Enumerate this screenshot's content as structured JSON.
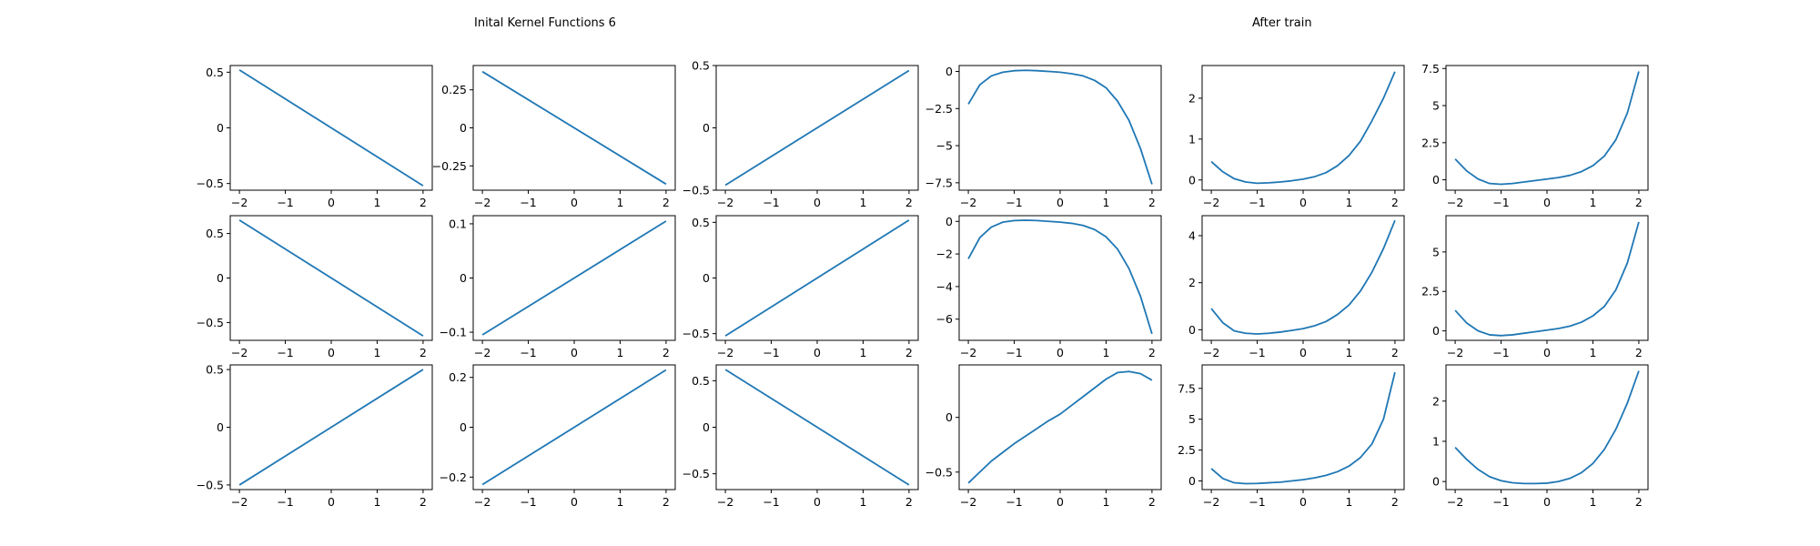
{
  "figure": {
    "titles": [
      "Inital Kernel Functions 6",
      "After train"
    ],
    "line_color": "#1f77b4"
  },
  "chart_data": [
    {
      "type": "line",
      "panel": "r1c1",
      "x": [
        -2,
        2
      ],
      "y": [
        0.52,
        -0.52
      ],
      "ylim": [
        -0.56,
        0.56
      ],
      "xticks": [
        -2,
        -1,
        0,
        1,
        2
      ],
      "yticks": [
        0.5,
        0.0,
        -0.5
      ]
    },
    {
      "type": "line",
      "panel": "r1c2",
      "x": [
        -2,
        2
      ],
      "y": [
        0.37,
        -0.37
      ],
      "ylim": [
        -0.41,
        0.41
      ],
      "xticks": [
        -2,
        -1,
        0,
        1,
        2
      ],
      "yticks": [
        0.25,
        0.0,
        -0.25
      ]
    },
    {
      "type": "line",
      "panel": "r1c3",
      "x": [
        -2,
        2
      ],
      "y": [
        -0.46,
        0.46
      ],
      "ylim": [
        -0.5,
        0.5
      ],
      "xticks": [
        -2,
        -1,
        0,
        1,
        2
      ],
      "yticks": [
        0.5,
        0.0,
        -0.5
      ]
    },
    {
      "type": "line",
      "panel": "r1c4",
      "x": [
        -2,
        -1.75,
        -1.5,
        -1.25,
        -1,
        -0.75,
        -0.5,
        -0.25,
        0,
        0.25,
        0.5,
        0.75,
        1,
        1.25,
        1.5,
        1.75,
        2
      ],
      "y": [
        -2.2,
        -0.9,
        -0.3,
        -0.05,
        0.05,
        0.08,
        0.05,
        0.0,
        -0.05,
        -0.15,
        -0.3,
        -0.6,
        -1.1,
        -2.0,
        -3.3,
        -5.2,
        -7.6
      ],
      "ylim": [
        -8.0,
        0.4
      ],
      "xticks": [
        -2,
        -1,
        0,
        1,
        2
      ],
      "yticks": [
        0.0,
        -2.5,
        -5.0,
        -7.5
      ]
    },
    {
      "type": "line",
      "panel": "r1c5",
      "x": [
        -2,
        -1.75,
        -1.5,
        -1.25,
        -1,
        -0.75,
        -0.5,
        -0.25,
        0,
        0.25,
        0.5,
        0.75,
        1,
        1.25,
        1.5,
        1.75,
        2
      ],
      "y": [
        0.45,
        0.2,
        0.03,
        -0.05,
        -0.08,
        -0.07,
        -0.05,
        -0.02,
        0.02,
        0.08,
        0.18,
        0.35,
        0.6,
        0.95,
        1.45,
        2.0,
        2.65
      ],
      "ylim": [
        -0.25,
        2.8
      ],
      "xticks": [
        -2,
        -1,
        0,
        1,
        2
      ],
      "yticks": [
        0,
        1,
        2
      ]
    },
    {
      "type": "line",
      "panel": "r1c6",
      "x": [
        -2,
        -1.75,
        -1.5,
        -1.25,
        -1,
        -0.75,
        -0.5,
        -0.25,
        0,
        0.25,
        0.5,
        0.75,
        1,
        1.25,
        1.5,
        1.75,
        2
      ],
      "y": [
        1.4,
        0.6,
        0.05,
        -0.25,
        -0.3,
        -0.25,
        -0.15,
        -0.05,
        0.05,
        0.15,
        0.3,
        0.55,
        0.95,
        1.6,
        2.7,
        4.5,
        7.3
      ],
      "ylim": [
        -0.7,
        7.7
      ],
      "xticks": [
        -2,
        -1,
        0,
        1,
        2
      ],
      "yticks": [
        0.0,
        2.5,
        5.0,
        7.5
      ]
    },
    {
      "type": "line",
      "panel": "r2c1",
      "x": [
        -2,
        2
      ],
      "y": [
        0.65,
        -0.65
      ],
      "ylim": [
        -0.7,
        0.7
      ],
      "xticks": [
        -2,
        -1,
        0,
        1,
        2
      ],
      "yticks": [
        0.5,
        0.0,
        -0.5
      ]
    },
    {
      "type": "line",
      "panel": "r2c2",
      "x": [
        -2,
        2
      ],
      "y": [
        -0.105,
        0.105
      ],
      "ylim": [
        -0.115,
        0.115
      ],
      "xticks": [
        -2,
        -1,
        0,
        1,
        2
      ],
      "yticks": [
        0.1,
        0.0,
        -0.1
      ]
    },
    {
      "type": "line",
      "panel": "r2c3",
      "x": [
        -2,
        2
      ],
      "y": [
        -0.52,
        0.52
      ],
      "ylim": [
        -0.56,
        0.56
      ],
      "xticks": [
        -2,
        -1,
        0,
        1,
        2
      ],
      "yticks": [
        0.5,
        0.0,
        -0.5
      ]
    },
    {
      "type": "line",
      "panel": "r2c4",
      "x": [
        -2,
        -1.75,
        -1.5,
        -1.25,
        -1,
        -0.75,
        -0.5,
        -0.25,
        0,
        0.25,
        0.5,
        0.75,
        1,
        1.25,
        1.5,
        1.75,
        2
      ],
      "y": [
        -2.3,
        -1.0,
        -0.35,
        -0.05,
        0.05,
        0.07,
        0.05,
        0.0,
        -0.05,
        -0.12,
        -0.25,
        -0.5,
        -0.95,
        -1.7,
        -2.9,
        -4.6,
        -6.9
      ],
      "ylim": [
        -7.3,
        0.35
      ],
      "xticks": [
        -2,
        -1,
        0,
        1,
        2
      ],
      "yticks": [
        0,
        -2,
        -4,
        -6
      ]
    },
    {
      "type": "line",
      "panel": "r2c5",
      "x": [
        -2,
        -1.75,
        -1.5,
        -1.25,
        -1,
        -0.75,
        -0.5,
        -0.25,
        0,
        0.25,
        0.5,
        0.75,
        1,
        1.25,
        1.5,
        1.75,
        2
      ],
      "y": [
        0.9,
        0.3,
        -0.05,
        -0.15,
        -0.18,
        -0.15,
        -0.1,
        -0.03,
        0.05,
        0.17,
        0.35,
        0.65,
        1.05,
        1.65,
        2.45,
        3.45,
        4.65
      ],
      "ylim": [
        -0.45,
        4.85
      ],
      "xticks": [
        -2,
        -1,
        0,
        1,
        2
      ],
      "yticks": [
        0,
        2,
        4
      ]
    },
    {
      "type": "line",
      "panel": "r2c6",
      "x": [
        -2,
        -1.75,
        -1.5,
        -1.25,
        -1,
        -0.75,
        -0.5,
        -0.25,
        0,
        0.25,
        0.5,
        0.75,
        1,
        1.25,
        1.5,
        1.75,
        2
      ],
      "y": [
        1.3,
        0.5,
        0.0,
        -0.25,
        -0.3,
        -0.25,
        -0.15,
        -0.05,
        0.05,
        0.15,
        0.3,
        0.55,
        0.95,
        1.55,
        2.6,
        4.3,
        6.9
      ],
      "ylim": [
        -0.6,
        7.3
      ],
      "xticks": [
        -2,
        -1,
        0,
        1,
        2
      ],
      "yticks": [
        0.0,
        2.5,
        5.0
      ]
    },
    {
      "type": "line",
      "panel": "r3c1",
      "x": [
        -2,
        2
      ],
      "y": [
        -0.5,
        0.5
      ],
      "ylim": [
        -0.54,
        0.54
      ],
      "xticks": [
        -2,
        -1,
        0,
        1,
        2
      ],
      "yticks": [
        0.5,
        0.0,
        -0.5
      ]
    },
    {
      "type": "line",
      "panel": "r3c2",
      "x": [
        -2,
        2
      ],
      "y": [
        -0.23,
        0.23
      ],
      "ylim": [
        -0.25,
        0.25
      ],
      "xticks": [
        -2,
        -1,
        0,
        1,
        2
      ],
      "yticks": [
        0.2,
        0.0,
        -0.2
      ]
    },
    {
      "type": "line",
      "panel": "r3c3",
      "x": [
        -2,
        2
      ],
      "y": [
        0.62,
        -0.62
      ],
      "ylim": [
        -0.67,
        0.67
      ],
      "xticks": [
        -2,
        -1,
        0,
        1,
        2
      ],
      "yticks": [
        0.5,
        0.0,
        -0.5
      ]
    },
    {
      "type": "line",
      "panel": "r3c4",
      "x": [
        -2,
        -1.75,
        -1.5,
        -1.25,
        -1,
        -0.75,
        -0.5,
        -0.25,
        0,
        0.25,
        0.5,
        0.75,
        1,
        1.25,
        1.5,
        1.75,
        2
      ],
      "y": [
        -0.6,
        -0.5,
        -0.4,
        -0.32,
        -0.24,
        -0.17,
        -0.1,
        -0.03,
        0.03,
        0.11,
        0.19,
        0.27,
        0.35,
        0.41,
        0.42,
        0.4,
        0.34
      ],
      "ylim": [
        -0.66,
        0.48
      ],
      "xticks": [
        -2,
        -1,
        0,
        1,
        2
      ],
      "yticks": [
        0.0,
        -0.5
      ]
    },
    {
      "type": "line",
      "panel": "r3c5",
      "x": [
        -2,
        -1.75,
        -1.5,
        -1.25,
        -1,
        -0.75,
        -0.5,
        -0.25,
        0,
        0.25,
        0.5,
        0.75,
        1,
        1.25,
        1.5,
        1.75,
        2
      ],
      "y": [
        1.0,
        0.2,
        -0.15,
        -0.22,
        -0.2,
        -0.15,
        -0.1,
        0.0,
        0.1,
        0.25,
        0.45,
        0.75,
        1.2,
        1.9,
        3.0,
        5.0,
        8.8
      ],
      "ylim": [
        -0.7,
        9.4
      ],
      "xticks": [
        -2,
        -1,
        0,
        1,
        2
      ],
      "yticks": [
        0.0,
        2.5,
        5.0,
        7.5
      ]
    },
    {
      "type": "line",
      "panel": "r3c6",
      "x": [
        -2,
        -1.75,
        -1.5,
        -1.25,
        -1,
        -0.75,
        -0.5,
        -0.25,
        0,
        0.25,
        0.5,
        0.75,
        1,
        1.25,
        1.5,
        1.75,
        2
      ],
      "y": [
        0.85,
        0.55,
        0.3,
        0.12,
        0.02,
        -0.03,
        -0.05,
        -0.05,
        -0.04,
        0.0,
        0.08,
        0.22,
        0.45,
        0.8,
        1.3,
        1.95,
        2.75
      ],
      "ylim": [
        -0.2,
        2.9
      ],
      "xticks": [
        -2,
        -1,
        0,
        1,
        2
      ],
      "yticks": [
        0,
        1,
        2
      ]
    }
  ]
}
